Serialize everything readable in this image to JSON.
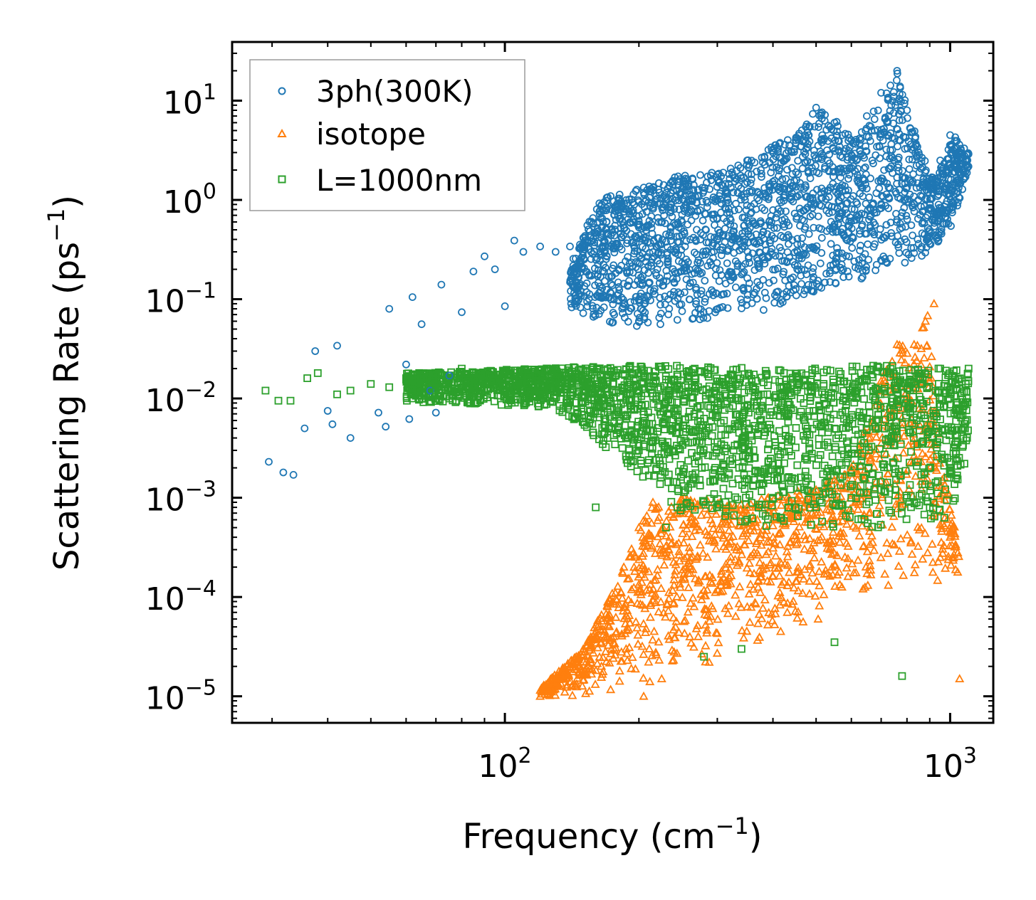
{
  "chart_data": {
    "type": "scatter",
    "title": "",
    "xlabel": "Frequency (cm",
    "xlabel_sup": "−1",
    "xlabel_tail": ")",
    "ylabel": "Scattering Rate (ps",
    "ylabel_sup": "−1",
    "ylabel_tail": ")",
    "xscale": "log",
    "yscale": "log",
    "xlim": [
      24.4,
      1250
    ],
    "ylim": [
      5.4e-06,
      39
    ],
    "x_ticks": [
      {
        "value": 100,
        "base": "10",
        "exp": "2"
      },
      {
        "value": 1000,
        "base": "10",
        "exp": "3"
      }
    ],
    "y_ticks": [
      {
        "value": 10,
        "base": "10",
        "exp": "1"
      },
      {
        "value": 1,
        "base": "10",
        "exp": "0"
      },
      {
        "value": 0.1,
        "base": "10",
        "exp": "−1"
      },
      {
        "value": 0.01,
        "base": "10",
        "exp": "−2"
      },
      {
        "value": 0.001,
        "base": "10",
        "exp": "−3"
      },
      {
        "value": 0.0001,
        "base": "10",
        "exp": "−4"
      },
      {
        "value": 1e-05,
        "base": "10",
        "exp": "−5"
      }
    ],
    "grid": false,
    "legend_position": "top-left",
    "series": [
      {
        "name": "3ph(300K)",
        "marker": "circle",
        "color": "#1f77b4",
        "sample_points": [
          [
            29.5,
            0.0023
          ],
          [
            31.8,
            0.0018
          ],
          [
            33.5,
            0.0017
          ],
          [
            35.5,
            0.005
          ],
          [
            37.5,
            0.03
          ],
          [
            40,
            0.0075
          ],
          [
            41,
            0.0055
          ],
          [
            42,
            0.034
          ],
          [
            45,
            0.004
          ],
          [
            52,
            0.0072
          ],
          [
            54,
            0.0052
          ],
          [
            55,
            0.08
          ],
          [
            60,
            0.022
          ],
          [
            61,
            0.0062
          ],
          [
            62,
            0.105
          ],
          [
            65,
            0.056
          ],
          [
            68,
            0.012
          ],
          [
            70,
            0.0072
          ],
          [
            72,
            0.14
          ],
          [
            75,
            0.017
          ],
          [
            80,
            0.074
          ],
          [
            85,
            0.19
          ],
          [
            90,
            0.27
          ],
          [
            95,
            0.2
          ],
          [
            100,
            0.085
          ],
          [
            105,
            0.39
          ],
          [
            110,
            0.3
          ],
          [
            120,
            0.34
          ],
          [
            130,
            0.3
          ],
          [
            140,
            0.34
          ],
          [
            150,
            0.33
          ],
          [
            165,
            0.9
          ],
          [
            180,
            0.2
          ],
          [
            200,
            0.06
          ],
          [
            220,
            0.2
          ],
          [
            250,
            0.6
          ],
          [
            300,
            1.8
          ],
          [
            350,
            2.5
          ],
          [
            400,
            3.0
          ],
          [
            450,
            4.0
          ],
          [
            500,
            8.5
          ],
          [
            550,
            6.0
          ],
          [
            600,
            4.0
          ],
          [
            650,
            7.0
          ],
          [
            700,
            12
          ],
          [
            760,
            20
          ],
          [
            800,
            8.0
          ],
          [
            850,
            3.0
          ],
          [
            900,
            1.5
          ],
          [
            950,
            2.5
          ],
          [
            1000,
            4.5
          ],
          [
            1050,
            3.0
          ],
          [
            1100,
            2.9
          ]
        ]
      },
      {
        "name": "isotope",
        "marker": "triangle",
        "color": "#ff7f0e",
        "sample_points": [
          [
            120,
            1e-05
          ],
          [
            130,
            1.5e-05
          ],
          [
            150,
            3e-05
          ],
          [
            170,
            8e-05
          ],
          [
            185,
            0.0002
          ],
          [
            200,
            0.0005
          ],
          [
            205,
            1e-05
          ],
          [
            215,
            0.0009
          ],
          [
            225,
            1.5e-05
          ],
          [
            235,
            0.0004
          ],
          [
            250,
            0.00015
          ],
          [
            270,
            0.00025
          ],
          [
            290,
            0.0006
          ],
          [
            320,
            0.0004
          ],
          [
            350,
            0.0008
          ],
          [
            400,
            0.0004
          ],
          [
            450,
            0.0008
          ],
          [
            500,
            0.0012
          ],
          [
            550,
            0.0015
          ],
          [
            600,
            0.002
          ],
          [
            700,
            0.015
          ],
          [
            760,
            0.035
          ],
          [
            830,
            0.035
          ],
          [
            880,
            0.06
          ],
          [
            920,
            0.09
          ],
          [
            950,
            0.00025
          ],
          [
            1000,
            0.0004
          ],
          [
            1050,
            1.5e-05
          ]
        ]
      },
      {
        "name": "L=1000nm",
        "marker": "square",
        "color": "#2ca02c",
        "sample_points": [
          [
            29,
            0.012
          ],
          [
            31,
            0.0095
          ],
          [
            33,
            0.0095
          ],
          [
            36,
            0.016
          ],
          [
            38,
            0.018
          ],
          [
            42,
            0.011
          ],
          [
            45,
            0.012
          ],
          [
            50,
            0.014
          ],
          [
            55,
            0.013
          ],
          [
            60,
            0.016
          ],
          [
            70,
            0.012
          ],
          [
            80,
            0.02
          ],
          [
            90,
            0.012
          ],
          [
            100,
            0.011
          ],
          [
            120,
            0.012
          ],
          [
            140,
            0.01
          ],
          [
            160,
            0.0008
          ],
          [
            170,
            0.004
          ],
          [
            190,
            0.003
          ],
          [
            200,
            0.003
          ],
          [
            230,
            0.0005
          ],
          [
            250,
            0.0008
          ],
          [
            300,
            0.0008
          ],
          [
            350,
            0.0006
          ],
          [
            400,
            0.001
          ],
          [
            450,
            0.0008
          ],
          [
            500,
            0.0008
          ],
          [
            600,
            0.001
          ],
          [
            700,
            0.0012
          ],
          [
            800,
            0.001
          ],
          [
            900,
            0.0008
          ],
          [
            1000,
            0.002
          ],
          [
            280,
            2.5e-05
          ],
          [
            340,
            3e-05
          ],
          [
            550,
            3.5e-05
          ],
          [
            780,
            1.6e-05
          ],
          [
            1100,
            0.02
          ],
          [
            1080,
            0.005
          ],
          [
            950,
            0.02
          ],
          [
            850,
            0.016
          ]
        ]
      }
    ]
  }
}
